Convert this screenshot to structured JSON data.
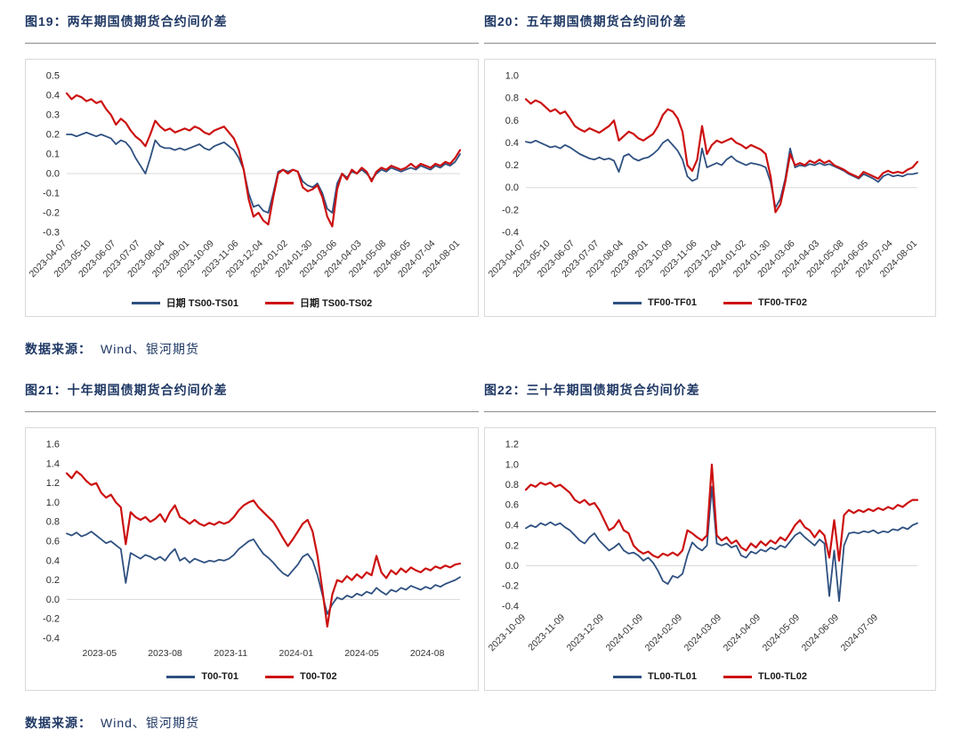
{
  "colors": {
    "navy_line": "#2e5080",
    "red_line": "#cc1111",
    "title_navy": "#1f3864",
    "box_border": "#d9d9d9",
    "grid": "#d9d9d9",
    "tick": "#333333"
  },
  "sections": [
    {
      "source_label": "数据来源：",
      "source_value": "Wind、银河期货"
    },
    {
      "source_label": "数据来源：",
      "source_value": "Wind、银河期货"
    }
  ],
  "chart_data": [
    {
      "type": "line",
      "title": "图19：两年期国债期货合约间价差",
      "ylim": [
        -0.3,
        0.5
      ],
      "yticks": [
        "0.5",
        "0.4",
        "0.3",
        "0.2",
        "0.1",
        "0.0",
        "-0.1",
        "-0.2",
        "-0.3"
      ],
      "xticks": [
        "2023-04-07",
        "2023-05-10",
        "2023-06-07",
        "2023-07-07",
        "2023-08-04",
        "2023-09-01",
        "2023-10-09",
        "2023-11-06",
        "2023-12-04",
        "2024-01-02",
        "2024-01-30",
        "2024-03-06",
        "2024-04-03",
        "2024-05-08",
        "2024-06-05",
        "2024-07-04",
        "2024-08-01"
      ],
      "xtick_mode": "edge",
      "xtick_rotate": true,
      "zero_gridline": true,
      "legend_position": "bottom",
      "series": [
        {
          "name": "日期 TS00-TS01",
          "color": "#2e5080",
          "width": 1.8,
          "values": [
            0.2,
            0.2,
            0.19,
            0.2,
            0.21,
            0.2,
            0.19,
            0.2,
            0.19,
            0.18,
            0.15,
            0.17,
            0.16,
            0.13,
            0.08,
            0.04,
            0.0,
            0.08,
            0.17,
            0.14,
            0.13,
            0.13,
            0.12,
            0.13,
            0.12,
            0.13,
            0.14,
            0.15,
            0.13,
            0.12,
            0.14,
            0.15,
            0.16,
            0.14,
            0.12,
            0.08,
            0.02,
            -0.1,
            -0.17,
            -0.16,
            -0.19,
            -0.2,
            -0.1,
            0.01,
            0.02,
            0.01,
            0.02,
            0.01,
            -0.04,
            -0.06,
            -0.07,
            -0.05,
            -0.1,
            -0.18,
            -0.2,
            -0.05,
            0.0,
            -0.02,
            0.01,
            0.0,
            0.02,
            0.0,
            -0.03,
            0.0,
            0.02,
            0.01,
            0.03,
            0.02,
            0.01,
            0.02,
            0.03,
            0.02,
            0.04,
            0.03,
            0.02,
            0.04,
            0.03,
            0.05,
            0.04,
            0.06,
            0.1
          ]
        },
        {
          "name": "日期 TS00-TS02",
          "color": "#cc1111",
          "width": 2.2,
          "values": [
            0.41,
            0.38,
            0.4,
            0.39,
            0.37,
            0.38,
            0.36,
            0.37,
            0.33,
            0.3,
            0.25,
            0.28,
            0.26,
            0.22,
            0.19,
            0.17,
            0.14,
            0.2,
            0.27,
            0.24,
            0.22,
            0.23,
            0.21,
            0.22,
            0.23,
            0.22,
            0.24,
            0.23,
            0.21,
            0.2,
            0.22,
            0.23,
            0.24,
            0.21,
            0.18,
            0.12,
            0.02,
            -0.13,
            -0.22,
            -0.2,
            -0.24,
            -0.26,
            -0.12,
            0.0,
            0.02,
            0.0,
            0.02,
            0.01,
            -0.07,
            -0.09,
            -0.08,
            -0.06,
            -0.12,
            -0.22,
            -0.27,
            -0.08,
            0.0,
            -0.03,
            0.02,
            0.0,
            0.03,
            0.01,
            -0.04,
            0.01,
            0.03,
            0.02,
            0.04,
            0.03,
            0.02,
            0.03,
            0.05,
            0.03,
            0.05,
            0.04,
            0.03,
            0.05,
            0.04,
            0.06,
            0.05,
            0.08,
            0.12
          ]
        }
      ]
    },
    {
      "type": "line",
      "title": "图20：五年期国债期货合约间价差",
      "ylim": [
        -0.4,
        1.0
      ],
      "yticks": [
        "1.0",
        "0.8",
        "0.6",
        "0.4",
        "0.2",
        "0.0",
        "-0.2",
        "-0.4"
      ],
      "xticks": [
        "2023-04-07",
        "2023-05-10",
        "2023-06-07",
        "2023-07-07",
        "2023-08-04",
        "2023-09-01",
        "2023-10-09",
        "2023-11-06",
        "2023-12-04",
        "2024-01-02",
        "2024-01-30",
        "2024-03-06",
        "2024-04-03",
        "2024-05-08",
        "2024-06-05",
        "2024-07-04",
        "2024-08-01"
      ],
      "xtick_mode": "edge",
      "xtick_rotate": true,
      "zero_gridline": true,
      "legend_position": "bottom",
      "series": [
        {
          "name": "TF00-TF01",
          "color": "#2e5080",
          "width": 1.8,
          "values": [
            0.41,
            0.4,
            0.42,
            0.4,
            0.38,
            0.36,
            0.37,
            0.35,
            0.38,
            0.36,
            0.33,
            0.3,
            0.28,
            0.26,
            0.25,
            0.27,
            0.25,
            0.26,
            0.24,
            0.14,
            0.28,
            0.3,
            0.26,
            0.24,
            0.26,
            0.27,
            0.3,
            0.34,
            0.4,
            0.43,
            0.38,
            0.33,
            0.25,
            0.1,
            0.06,
            0.08,
            0.35,
            0.18,
            0.2,
            0.22,
            0.2,
            0.25,
            0.28,
            0.24,
            0.22,
            0.2,
            0.22,
            0.21,
            0.2,
            0.18,
            0.05,
            -0.18,
            -0.1,
            0.08,
            0.35,
            0.18,
            0.2,
            0.19,
            0.21,
            0.2,
            0.22,
            0.2,
            0.21,
            0.19,
            0.17,
            0.15,
            0.12,
            0.1,
            0.08,
            0.12,
            0.1,
            0.08,
            0.05,
            0.1,
            0.12,
            0.1,
            0.11,
            0.1,
            0.12,
            0.12,
            0.13
          ]
        },
        {
          "name": "TF00-TF02",
          "color": "#cc1111",
          "width": 2.2,
          "values": [
            0.79,
            0.75,
            0.78,
            0.76,
            0.72,
            0.68,
            0.7,
            0.66,
            0.68,
            0.62,
            0.55,
            0.52,
            0.5,
            0.53,
            0.51,
            0.49,
            0.52,
            0.55,
            0.6,
            0.42,
            0.46,
            0.5,
            0.48,
            0.44,
            0.42,
            0.45,
            0.48,
            0.55,
            0.65,
            0.7,
            0.68,
            0.62,
            0.5,
            0.2,
            0.15,
            0.25,
            0.55,
            0.3,
            0.38,
            0.42,
            0.4,
            0.42,
            0.44,
            0.4,
            0.38,
            0.35,
            0.38,
            0.36,
            0.34,
            0.3,
            0.1,
            -0.22,
            -0.15,
            0.05,
            0.3,
            0.2,
            0.22,
            0.2,
            0.24,
            0.22,
            0.25,
            0.22,
            0.24,
            0.2,
            0.18,
            0.16,
            0.13,
            0.11,
            0.09,
            0.14,
            0.12,
            0.1,
            0.08,
            0.13,
            0.15,
            0.13,
            0.14,
            0.13,
            0.16,
            0.18,
            0.23
          ]
        }
      ]
    },
    {
      "type": "line",
      "title": "图21：十年期国债期货合约间价差",
      "ylim": [
        -0.4,
        1.6
      ],
      "yticks": [
        "1.6",
        "1.4",
        "1.2",
        "1.0",
        "0.8",
        "0.6",
        "0.4",
        "0.2",
        "0.0",
        "-0.2",
        "-0.4"
      ],
      "xticks": [
        "2023-05",
        "2023-08",
        "2023-11",
        "2024-01",
        "2024-05",
        "2024-08"
      ],
      "xtick_mode": "band",
      "xtick_rotate": false,
      "zero_gridline": true,
      "legend_position": "bottom",
      "series": [
        {
          "name": "T00-T01",
          "color": "#2e5080",
          "width": 1.8,
          "values": [
            0.68,
            0.66,
            0.69,
            0.65,
            0.67,
            0.7,
            0.66,
            0.62,
            0.58,
            0.6,
            0.56,
            0.52,
            0.17,
            0.48,
            0.45,
            0.42,
            0.46,
            0.44,
            0.41,
            0.44,
            0.4,
            0.47,
            0.52,
            0.4,
            0.43,
            0.38,
            0.42,
            0.4,
            0.38,
            0.4,
            0.39,
            0.41,
            0.4,
            0.42,
            0.46,
            0.52,
            0.56,
            0.6,
            0.62,
            0.54,
            0.47,
            0.43,
            0.38,
            0.32,
            0.27,
            0.24,
            0.3,
            0.36,
            0.44,
            0.47,
            0.4,
            0.25,
            0.05,
            -0.15,
            -0.05,
            0.02,
            0.0,
            0.04,
            0.02,
            0.06,
            0.04,
            0.08,
            0.06,
            0.12,
            0.08,
            0.05,
            0.1,
            0.08,
            0.12,
            0.1,
            0.14,
            0.12,
            0.1,
            0.13,
            0.11,
            0.15,
            0.13,
            0.16,
            0.18,
            0.2,
            0.23
          ]
        },
        {
          "name": "T00-T02",
          "color": "#cc1111",
          "width": 2.2,
          "values": [
            1.3,
            1.25,
            1.32,
            1.28,
            1.22,
            1.18,
            1.2,
            1.1,
            1.05,
            1.08,
            1.0,
            0.95,
            0.57,
            0.9,
            0.85,
            0.82,
            0.85,
            0.8,
            0.83,
            0.88,
            0.8,
            0.9,
            0.97,
            0.85,
            0.82,
            0.78,
            0.82,
            0.78,
            0.76,
            0.79,
            0.77,
            0.8,
            0.78,
            0.8,
            0.85,
            0.92,
            0.97,
            1.0,
            1.02,
            0.95,
            0.9,
            0.85,
            0.8,
            0.72,
            0.63,
            0.55,
            0.62,
            0.7,
            0.78,
            0.82,
            0.7,
            0.45,
            0.1,
            -0.28,
            0.05,
            0.2,
            0.18,
            0.24,
            0.2,
            0.26,
            0.22,
            0.28,
            0.25,
            0.45,
            0.28,
            0.22,
            0.3,
            0.26,
            0.32,
            0.28,
            0.33,
            0.3,
            0.28,
            0.32,
            0.3,
            0.34,
            0.32,
            0.35,
            0.33,
            0.36,
            0.37
          ]
        }
      ]
    },
    {
      "type": "line",
      "title": "图22：三十年期国债期货合约间价差",
      "ylim": [
        -0.4,
        1.2
      ],
      "yticks": [
        "1.2",
        "1.0",
        "0.8",
        "0.6",
        "0.4",
        "0.2",
        "0.0",
        "-0.2",
        "-0.4"
      ],
      "xticks": [
        "2023-10-09",
        "2023-11-09",
        "2023-12-09",
        "2024-01-09",
        "2024-02-09",
        "2024-03-09",
        "2024-04-09",
        "2024-05-09",
        "2024-06-09",
        "2024-07-09"
      ],
      "xtick_mode": "start",
      "xtick_rotate": true,
      "zero_gridline": true,
      "legend_position": "bottom",
      "series": [
        {
          "name": "TL00-TL01",
          "color": "#2e5080",
          "width": 1.8,
          "values": [
            0.37,
            0.4,
            0.38,
            0.42,
            0.4,
            0.43,
            0.4,
            0.42,
            0.38,
            0.35,
            0.3,
            0.25,
            0.22,
            0.28,
            0.32,
            0.25,
            0.2,
            0.15,
            0.18,
            0.22,
            0.15,
            0.12,
            0.13,
            0.1,
            0.05,
            0.08,
            0.03,
            -0.05,
            -0.15,
            -0.18,
            -0.1,
            -0.12,
            -0.08,
            0.1,
            0.23,
            0.18,
            0.15,
            0.2,
            0.78,
            0.22,
            0.2,
            0.22,
            0.18,
            0.2,
            0.1,
            0.08,
            0.14,
            0.12,
            0.16,
            0.14,
            0.18,
            0.16,
            0.2,
            0.18,
            0.24,
            0.3,
            0.33,
            0.28,
            0.24,
            0.2,
            0.26,
            0.22,
            -0.3,
            0.15,
            -0.35,
            0.2,
            0.32,
            0.33,
            0.32,
            0.34,
            0.33,
            0.35,
            0.32,
            0.34,
            0.33,
            0.36,
            0.35,
            0.38,
            0.36,
            0.4,
            0.42
          ]
        },
        {
          "name": "TL00-TL02",
          "color": "#cc1111",
          "width": 2.2,
          "values": [
            0.75,
            0.8,
            0.78,
            0.82,
            0.8,
            0.82,
            0.78,
            0.8,
            0.76,
            0.72,
            0.65,
            0.62,
            0.65,
            0.6,
            0.62,
            0.55,
            0.45,
            0.35,
            0.38,
            0.45,
            0.35,
            0.32,
            0.2,
            0.15,
            0.12,
            0.14,
            0.1,
            0.08,
            0.12,
            0.1,
            0.13,
            0.1,
            0.15,
            0.35,
            0.32,
            0.28,
            0.25,
            0.3,
            1.0,
            0.3,
            0.25,
            0.28,
            0.22,
            0.25,
            0.18,
            0.15,
            0.22,
            0.18,
            0.24,
            0.2,
            0.25,
            0.22,
            0.28,
            0.25,
            0.32,
            0.4,
            0.45,
            0.38,
            0.35,
            0.28,
            0.35,
            0.3,
            0.08,
            0.45,
            0.05,
            0.5,
            0.55,
            0.52,
            0.55,
            0.53,
            0.56,
            0.54,
            0.57,
            0.55,
            0.58,
            0.56,
            0.6,
            0.58,
            0.62,
            0.65,
            0.65
          ]
        }
      ]
    }
  ]
}
